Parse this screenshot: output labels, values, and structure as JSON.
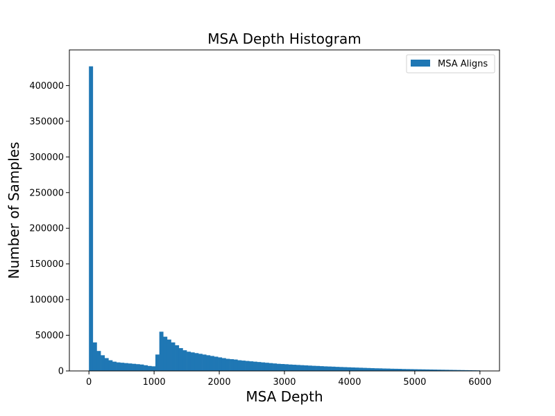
{
  "chart_data": {
    "type": "bar",
    "title": "MSA Depth Histogram",
    "xlabel": "MSA Depth",
    "ylabel": "Number of Samples",
    "xlim": [
      -300,
      6300
    ],
    "ylim": [
      0,
      450000
    ],
    "x_ticks": [
      0,
      1000,
      2000,
      3000,
      4000,
      5000,
      6000
    ],
    "y_ticks": [
      0,
      50000,
      100000,
      150000,
      200000,
      250000,
      300000,
      350000,
      400000
    ],
    "bin_width": 60,
    "bin_start": 0,
    "grid": false,
    "legend_position": "top-right",
    "series": [
      {
        "name": "MSA Aligns",
        "color": "#1f77b4",
        "values": [
          427000,
          40000,
          28000,
          22000,
          18000,
          15000,
          13000,
          12000,
          11500,
          11000,
          10500,
          10000,
          9500,
          9000,
          8000,
          7000,
          6500,
          23000,
          55000,
          48000,
          44000,
          40000,
          36000,
          32000,
          29000,
          27000,
          26000,
          25000,
          24000,
          23000,
          22000,
          21000,
          20000,
          19000,
          18000,
          17000,
          16500,
          16000,
          15000,
          14500,
          14000,
          13500,
          13000,
          12500,
          12000,
          11500,
          11000,
          10500,
          10000,
          9700,
          9400,
          9000,
          8700,
          8400,
          8100,
          7800,
          7500,
          7200,
          7000,
          6700,
          6400,
          6200,
          6000,
          5700,
          5500,
          5300,
          5100,
          4900,
          4700,
          4500,
          4300,
          4100,
          3900,
          3700,
          3600,
          3400,
          3300,
          3100,
          3000,
          2900,
          2700,
          2600,
          2500,
          2400,
          2300,
          2200,
          2100,
          2000,
          1900,
          1800,
          1700,
          1600,
          1500,
          1400,
          1300,
          1200,
          1100,
          1000,
          900,
          800
        ]
      }
    ]
  }
}
